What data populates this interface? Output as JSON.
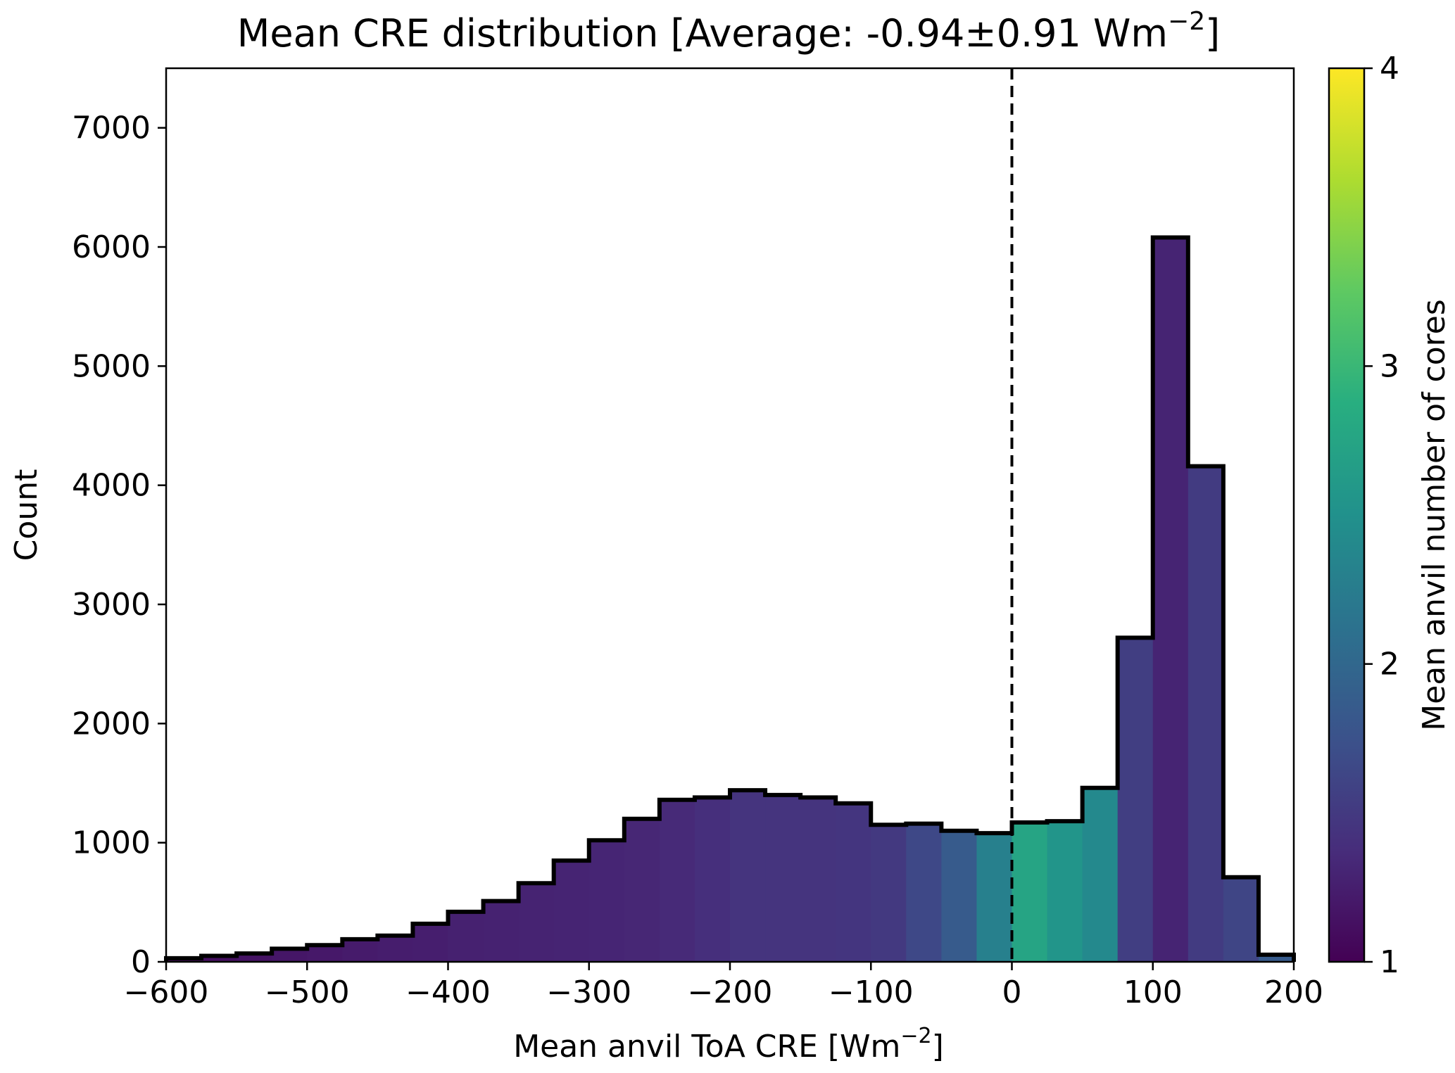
{
  "chart_data": {
    "type": "bar",
    "title": "Mean CRE distribution [Average: -0.94±0.91 Wm",
    "title_sup": "−2",
    "title_end": "]",
    "xlabel": "Mean anvil ToA CRE [Wm",
    "xlabel_sup": "−2",
    "xlabel_end": "]",
    "ylabel": "Count",
    "colorbar_label": "Mean anvil number of cores",
    "colormap": "viridis",
    "xlim": [
      -600,
      200
    ],
    "ylim": [
      0,
      7500
    ],
    "colorbar_range": [
      1,
      4
    ],
    "x_ticks": [
      -600,
      -500,
      -400,
      -300,
      -200,
      -100,
      0,
      100,
      200
    ],
    "x_tick_labels": [
      "−600",
      "−500",
      "−400",
      "−300",
      "−200",
      "−100",
      "0",
      "100",
      "200"
    ],
    "y_ticks": [
      0,
      1000,
      2000,
      3000,
      4000,
      5000,
      6000,
      7000
    ],
    "y_tick_labels": [
      "0",
      "1000",
      "2000",
      "3000",
      "4000",
      "5000",
      "6000",
      "7000"
    ],
    "colorbar_ticks": [
      1,
      2,
      3,
      4
    ],
    "colorbar_tick_labels": [
      "1",
      "2",
      "3",
      "4"
    ],
    "reference_line_x": 0,
    "bin_edges": [
      -600,
      -575,
      -550,
      -525,
      -500,
      -475,
      -450,
      -425,
      -400,
      -375,
      -350,
      -325,
      -300,
      -275,
      -250,
      -225,
      -200,
      -175,
      -150,
      -125,
      -100,
      -75,
      -50,
      -25,
      0,
      25,
      50,
      75,
      100,
      125,
      150,
      175,
      200
    ],
    "counts": [
      30,
      50,
      70,
      110,
      140,
      190,
      220,
      320,
      420,
      510,
      660,
      850,
      1020,
      1200,
      1360,
      1380,
      1440,
      1400,
      1380,
      1330,
      1150,
      1160,
      1100,
      1080,
      1170,
      1180,
      1460,
      2720,
      6080,
      4160,
      710,
      60
    ],
    "mean_cores": [
      1.1,
      1.12,
      1.15,
      1.18,
      1.2,
      1.22,
      1.24,
      1.25,
      1.27,
      1.28,
      1.29,
      1.3,
      1.31,
      1.32,
      1.35,
      1.4,
      1.45,
      1.45,
      1.45,
      1.46,
      1.5,
      1.65,
      1.85,
      2.3,
      2.75,
      2.55,
      2.4,
      1.55,
      1.3,
      1.52,
      1.62,
      1.85
    ]
  },
  "colors": {
    "outline": "#000000",
    "background": "#ffffff"
  }
}
